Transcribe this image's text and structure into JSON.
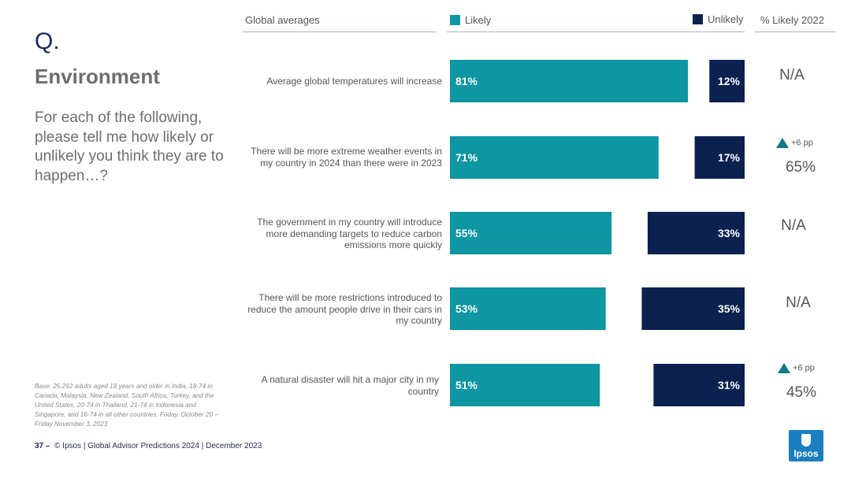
{
  "slide": {
    "q_mark": "Q.",
    "topic": "Environment",
    "question": "For each of the following, please tell me how likely or unlikely you think they are to happen…?",
    "base_note": "Base: 25,292 adults aged 18 years and older in India, 18-74 in Canada, Malaysia, New Zealand, South Africa, Turkey, and the United States, 20-74 in Thailand, 21-74 in Indonesia and Singapore, and 16-74 in all other countries. Friday, October 20 – Friday November 3, 2023",
    "footer_page": "37",
    "footer_dash": "–",
    "footer_text": "© Ipsos | Global Advisor Predictions 2024 | December 2023",
    "logo_text": "Ipsos"
  },
  "colors": {
    "likely": "#0e96a2",
    "unlikely": "#0b2150",
    "rule": "#a9b4c2",
    "triangle": "#0e7a8a"
  },
  "header": {
    "col1": "Global averages",
    "likely": "Likely",
    "unlikely": "Unlikely",
    "col3": "% Likely 2022"
  },
  "chart_data": {
    "type": "bar",
    "orientation": "horizontal-diverging",
    "title": "Environment",
    "categories": [
      "Average global temperatures will increase",
      "There will be more extreme weather events in my country in 2024 than there were in 2023",
      "The government in my country will introduce more demanding targets to reduce carbon emissions more quickly",
      "There will be more restrictions introduced to reduce the amount people drive in their cars in my country",
      "A natural disaster will hit a major city in my country"
    ],
    "series": [
      {
        "name": "Likely",
        "values": [
          81,
          71,
          55,
          53,
          51
        ]
      },
      {
        "name": "Unlikely",
        "values": [
          12,
          17,
          33,
          35,
          31
        ]
      }
    ],
    "value_labels": {
      "likely": [
        "81%",
        "71%",
        "55%",
        "53%",
        "51%"
      ],
      "unlikely": [
        "12%",
        "17%",
        "33%",
        "35%",
        "31%"
      ]
    },
    "likely_2022": [
      "N/A",
      "65%",
      "N/A",
      "N/A",
      "45%"
    ],
    "change_vs_2022": [
      "",
      "+6 pp",
      "",
      "",
      "+6 pp"
    ],
    "xlim": [
      0,
      100
    ]
  }
}
